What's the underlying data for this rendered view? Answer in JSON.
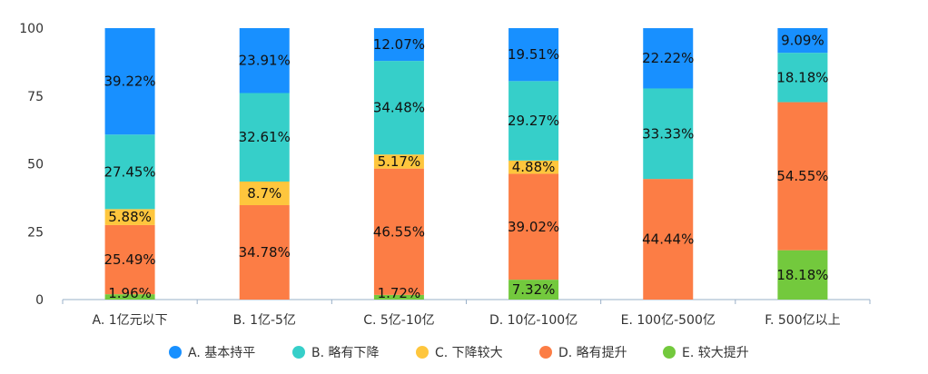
{
  "chart_data": {
    "type": "bar",
    "stacked": true,
    "categories": [
      "A. 1亿元以下",
      "B. 1亿-5亿",
      "C. 5亿-10亿",
      "D. 10亿-100亿",
      "E. 100亿-500亿",
      "F. 500亿以上"
    ],
    "series": [
      {
        "name": "E. 较大提升",
        "color": "#73c93d",
        "values": [
          1.96,
          0,
          1.72,
          7.32,
          0,
          18.18
        ],
        "labels": [
          "1.96%",
          "",
          "1.72%",
          "7.32%",
          "",
          "18.18%"
        ]
      },
      {
        "name": "D. 略有提升",
        "color": "#fc7d45",
        "values": [
          25.49,
          34.78,
          46.55,
          39.02,
          44.44,
          54.55
        ],
        "labels": [
          "25.49%",
          "34.78%",
          "46.55%",
          "39.02%",
          "44.44%",
          "54.55%"
        ]
      },
      {
        "name": "C. 下降较大",
        "color": "#fec63d",
        "values": [
          5.88,
          8.7,
          5.17,
          4.88,
          0,
          0
        ],
        "labels": [
          "5.88%",
          "8.7%",
          "5.17%",
          "4.88%",
          "",
          ""
        ]
      },
      {
        "name": "B. 略有下降",
        "color": "#36cfc9",
        "values": [
          27.45,
          32.61,
          34.48,
          29.27,
          33.33,
          18.18
        ],
        "labels": [
          "27.45%",
          "32.61%",
          "34.48%",
          "29.27%",
          "33.33%",
          "18.18%"
        ]
      },
      {
        "name": "A. 基本持平",
        "color": "#1890ff",
        "values": [
          39.22,
          23.91,
          12.07,
          19.51,
          22.22,
          9.09
        ],
        "labels": [
          "39.22%",
          "23.91%",
          "12.07%",
          "19.51%",
          "22.22%",
          "9.09%"
        ]
      }
    ],
    "legend_order": [
      "A. 基本持平",
      "B. 略有下降",
      "C. 下降较大",
      "D. 略有提升",
      "E. 较大提升"
    ],
    "legend_position": "bottom",
    "ylim": [
      0,
      100
    ],
    "yticks": [
      "0",
      "25",
      "50",
      "75",
      "100"
    ],
    "grid": false
  }
}
